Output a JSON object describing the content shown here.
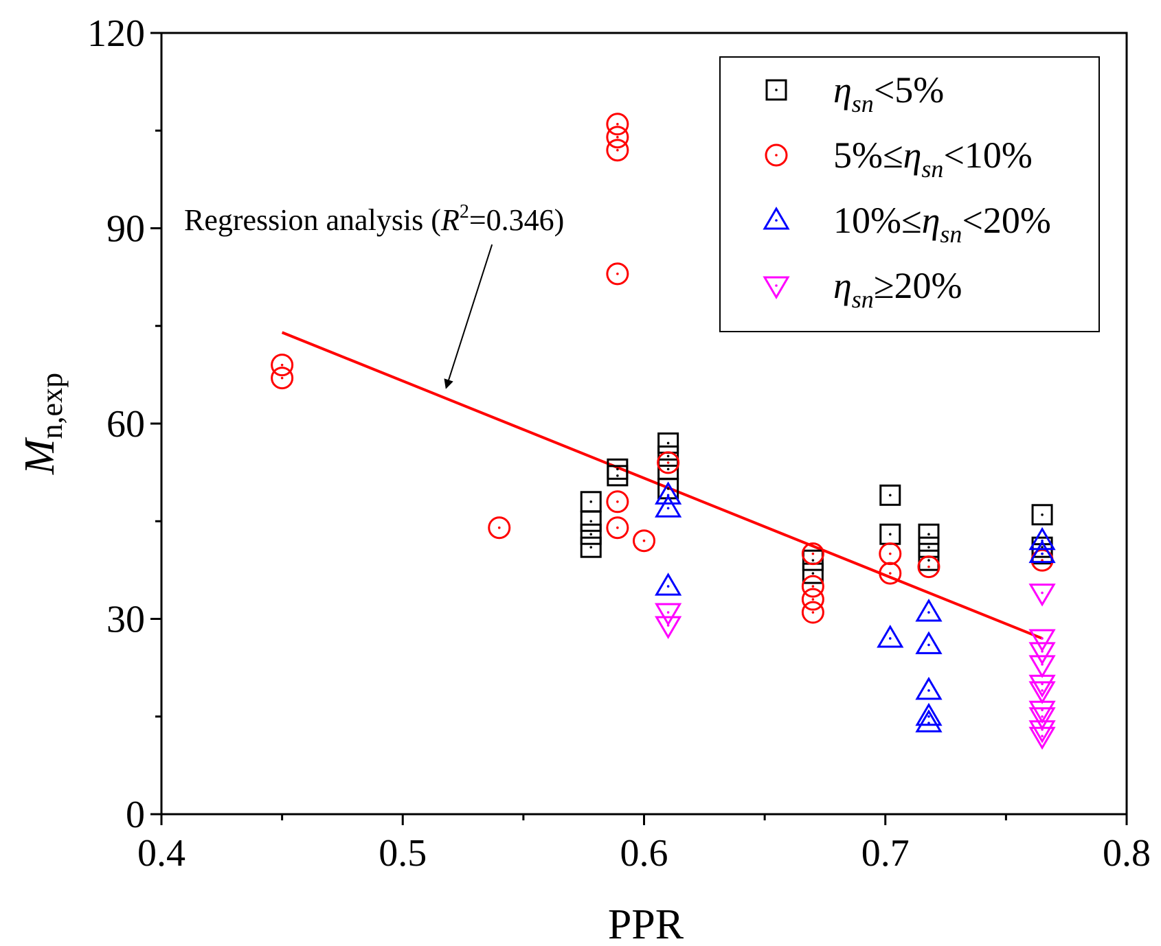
{
  "chart_data": {
    "type": "scatter",
    "title": "",
    "xlabel": "PPR",
    "ylabel_main": "M",
    "ylabel_sub": "n,exp",
    "xlim": [
      0.4,
      0.8
    ],
    "ylim": [
      0,
      120
    ],
    "xticks": [
      "0.4",
      "0.5",
      "0.6",
      "0.7",
      "0.8"
    ],
    "yticks": [
      "0",
      "30",
      "60",
      "90",
      "120"
    ],
    "grid": false,
    "legend_position": "top-right",
    "series": [
      {
        "name": "ηsn<5%",
        "label_parts": [
          "",
          "η",
          "sn",
          "<5%"
        ],
        "marker": "square",
        "color": "#000000",
        "points": [
          [
            0.578,
            48
          ],
          [
            0.578,
            45
          ],
          [
            0.578,
            43
          ],
          [
            0.578,
            41
          ],
          [
            0.589,
            53
          ],
          [
            0.589,
            52
          ],
          [
            0.61,
            57
          ],
          [
            0.61,
            55
          ],
          [
            0.61,
            53
          ],
          [
            0.61,
            50
          ],
          [
            0.67,
            39
          ],
          [
            0.67,
            37
          ],
          [
            0.702,
            49
          ],
          [
            0.702,
            43
          ],
          [
            0.718,
            43
          ],
          [
            0.718,
            41
          ],
          [
            0.718,
            39
          ],
          [
            0.765,
            46
          ],
          [
            0.765,
            41
          ],
          [
            0.765,
            40
          ]
        ]
      },
      {
        "name": "5%≤ηsn<10%",
        "label_parts": [
          "5%≤",
          "η",
          "sn",
          "<10%"
        ],
        "marker": "circle",
        "color": "#ff0000",
        "points": [
          [
            0.45,
            69
          ],
          [
            0.45,
            67
          ],
          [
            0.54,
            44
          ],
          [
            0.589,
            106
          ],
          [
            0.589,
            104
          ],
          [
            0.589,
            102
          ],
          [
            0.589,
            83
          ],
          [
            0.589,
            48
          ],
          [
            0.589,
            44
          ],
          [
            0.6,
            42
          ],
          [
            0.61,
            54
          ],
          [
            0.67,
            40
          ],
          [
            0.67,
            35
          ],
          [
            0.67,
            33
          ],
          [
            0.67,
            31
          ],
          [
            0.702,
            40
          ],
          [
            0.702,
            37
          ],
          [
            0.718,
            38
          ],
          [
            0.765,
            39
          ]
        ]
      },
      {
        "name": "10%≤ηsn<20%",
        "label_parts": [
          "10%≤",
          "η",
          "sn",
          "<20%"
        ],
        "marker": "triangle-up",
        "color": "#0000ff",
        "points": [
          [
            0.61,
            49
          ],
          [
            0.61,
            47
          ],
          [
            0.61,
            35
          ],
          [
            0.702,
            27
          ],
          [
            0.718,
            31
          ],
          [
            0.718,
            26
          ],
          [
            0.718,
            19
          ],
          [
            0.718,
            15
          ],
          [
            0.718,
            14
          ],
          [
            0.765,
            42
          ],
          [
            0.765,
            40
          ]
        ]
      },
      {
        "name": "ηsn≥20%",
        "label_parts": [
          "",
          "η",
          "sn",
          "≥20%"
        ],
        "marker": "triangle-down",
        "color": "#ff00ff",
        "points": [
          [
            0.61,
            31
          ],
          [
            0.61,
            29
          ],
          [
            0.765,
            34
          ],
          [
            0.765,
            27
          ],
          [
            0.765,
            25
          ],
          [
            0.765,
            23
          ],
          [
            0.765,
            20
          ],
          [
            0.765,
            19
          ],
          [
            0.765,
            16
          ],
          [
            0.765,
            15
          ],
          [
            0.765,
            13
          ],
          [
            0.765,
            12
          ]
        ]
      }
    ],
    "regression": {
      "color": "#ff0000",
      "x": [
        0.45,
        0.765
      ],
      "y": [
        74,
        27
      ]
    },
    "annotation": {
      "text_prefix": "Regression analysis (",
      "r_symbol": "R",
      "r_sup": "2",
      "text_suffix": "=0.346)",
      "arrow_from": [
        0.537,
        87.5
      ],
      "arrow_to": [
        0.518,
        65.5
      ]
    }
  }
}
